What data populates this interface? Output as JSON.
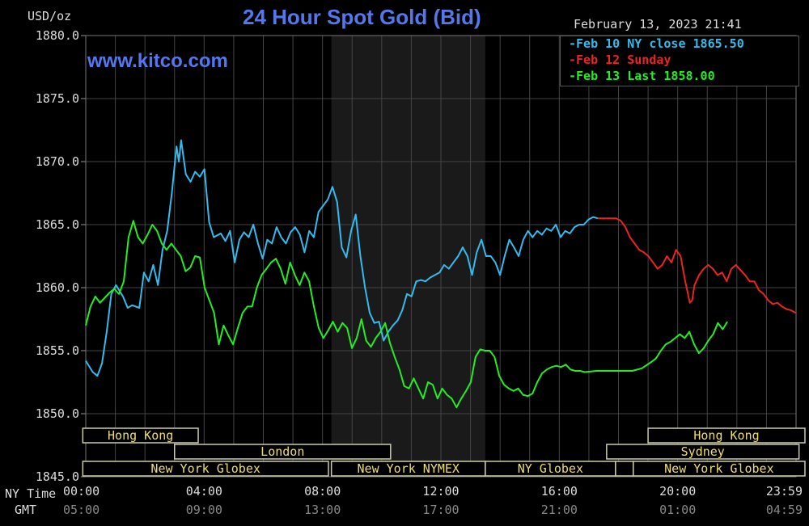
{
  "chart_data": {
    "type": "line",
    "title": "24 Hour Spot Gold (Bid)",
    "site": "www.kitco.com",
    "timestamp": "February 13, 2023 21:41",
    "ylabel": "USD/oz",
    "ylim": [
      1845,
      1880
    ],
    "y_ticks": [
      "1880.0",
      "1875.0",
      "1870.0",
      "1865.0",
      "1860.0",
      "1855.0",
      "1850.0",
      "1845.0"
    ],
    "grid": true,
    "legend_position": "top-right",
    "x_hours_ny": [
      0,
      24
    ],
    "x_labels_ny": [
      "00:00",
      "04:00",
      "08:00",
      "12:00",
      "16:00",
      "20:00",
      "23:59"
    ],
    "x_labels_gmt": [
      "05:00",
      "09:00",
      "13:00",
      "17:00",
      "21:00",
      "01:00",
      "04:59"
    ],
    "row_label_ny": "NY Time",
    "row_label_gmt": "GMT",
    "highlight_hours": [
      8.3,
      13.5
    ],
    "series": [
      {
        "name": "Feb 10 NY close 1865.50",
        "color": "#33bbee",
        "points": [
          [
            0,
            1854.2
          ],
          [
            0.3,
            1853.3
          ],
          [
            0.5,
            1853.0
          ],
          [
            0.7,
            1854.0
          ],
          [
            0.9,
            1856.5
          ],
          [
            1.1,
            1859.5
          ],
          [
            1.3,
            1860.2
          ],
          [
            1.6,
            1859.3
          ],
          [
            1.8,
            1858.4
          ],
          [
            2.0,
            1858.6
          ],
          [
            2.3,
            1858.4
          ],
          [
            2.5,
            1861.2
          ],
          [
            2.7,
            1860.5
          ],
          [
            2.9,
            1861.8
          ],
          [
            3.1,
            1860.2
          ],
          [
            3.3,
            1863.0
          ],
          [
            3.5,
            1864.5
          ],
          [
            3.7,
            1867.5
          ],
          [
            3.9,
            1871.2
          ],
          [
            4.0,
            1870.0
          ],
          [
            4.1,
            1871.7
          ],
          [
            4.3,
            1869.0
          ],
          [
            4.5,
            1868.4
          ],
          [
            4.7,
            1869.2
          ],
          [
            4.9,
            1868.8
          ],
          [
            5.1,
            1869.4
          ],
          [
            5.3,
            1865.2
          ],
          [
            5.5,
            1864.0
          ],
          [
            5.8,
            1864.3
          ],
          [
            6.0,
            1863.7
          ],
          [
            6.2,
            1864.5
          ],
          [
            6.4,
            1862.0
          ],
          [
            6.6,
            1863.8
          ],
          [
            6.8,
            1864.4
          ],
          [
            7.0,
            1864.0
          ],
          [
            7.2,
            1865.0
          ],
          [
            7.4,
            1863.5
          ],
          [
            7.6,
            1862.3
          ],
          [
            7.8,
            1863.8
          ],
          [
            8.0,
            1863.5
          ],
          [
            8.2,
            1864.8
          ],
          [
            8.4,
            1864.0
          ],
          [
            8.6,
            1863.5
          ],
          [
            8.8,
            1864.4
          ],
          [
            9.0,
            1864.8
          ],
          [
            9.2,
            1864.2
          ],
          [
            9.4,
            1862.8
          ],
          [
            9.6,
            1864.5
          ],
          [
            9.8,
            1864.0
          ],
          [
            10.0,
            1866.0
          ],
          [
            10.2,
            1866.5
          ],
          [
            10.4,
            1867.0
          ],
          [
            10.6,
            1868.0
          ],
          [
            10.8,
            1866.8
          ],
          [
            11.0,
            1863.2
          ],
          [
            11.2,
            1862.4
          ],
          [
            11.4,
            1864.5
          ],
          [
            11.6,
            1865.8
          ],
          [
            11.8,
            1862.5
          ],
          [
            12.0,
            1860.0
          ],
          [
            12.2,
            1858.0
          ],
          [
            12.4,
            1857.2
          ],
          [
            12.6,
            1857.3
          ],
          [
            12.8,
            1855.8
          ],
          [
            13.0,
            1856.5
          ],
          [
            13.2,
            1857.0
          ],
          [
            13.4,
            1857.4
          ],
          [
            13.6,
            1858.2
          ],
          [
            13.8,
            1859.5
          ],
          [
            14.0,
            1859.3
          ],
          [
            14.2,
            1860.5
          ],
          [
            14.4,
            1860.6
          ],
          [
            14.6,
            1860.5
          ],
          [
            14.8,
            1860.8
          ],
          [
            15.0,
            1861.0
          ],
          [
            15.2,
            1861.2
          ],
          [
            15.4,
            1861.8
          ],
          [
            15.6,
            1861.5
          ],
          [
            15.8,
            1862.0
          ],
          [
            16.0,
            1862.5
          ],
          [
            16.2,
            1863.2
          ],
          [
            16.4,
            1862.5
          ],
          [
            16.6,
            1861.0
          ],
          [
            16.8,
            1862.8
          ],
          [
            17.0,
            1863.8
          ],
          [
            17.2,
            1862.5
          ],
          [
            17.4,
            1862.5
          ],
          [
            17.6,
            1862.0
          ],
          [
            17.8,
            1861.0
          ],
          [
            18.0,
            1862.5
          ],
          [
            18.2,
            1863.8
          ],
          [
            18.4,
            1863.2
          ],
          [
            18.6,
            1862.5
          ],
          [
            18.8,
            1863.8
          ],
          [
            19.0,
            1864.5
          ],
          [
            19.2,
            1864.0
          ],
          [
            19.4,
            1864.5
          ],
          [
            19.6,
            1864.2
          ],
          [
            19.8,
            1864.7
          ],
          [
            20.0,
            1864.5
          ],
          [
            20.2,
            1865.0
          ],
          [
            20.4,
            1864.0
          ],
          [
            20.6,
            1864.5
          ],
          [
            20.8,
            1864.3
          ],
          [
            21.0,
            1864.8
          ],
          [
            21.2,
            1865.0
          ],
          [
            21.4,
            1865.0
          ],
          [
            21.6,
            1865.4
          ],
          [
            21.8,
            1865.6
          ],
          [
            22.0,
            1865.5
          ]
        ]
      },
      {
        "name": "Feb 12 Sunday",
        "color": "#ee2222",
        "points": [
          [
            0,
            1865.5
          ],
          [
            0.3,
            1865.5
          ],
          [
            0.6,
            1865.5
          ],
          [
            0.8,
            1865.5
          ],
          [
            1.0,
            1865.3
          ],
          [
            1.2,
            1864.8
          ],
          [
            1.4,
            1864.0
          ],
          [
            1.6,
            1863.5
          ],
          [
            1.8,
            1863.0
          ],
          [
            2.0,
            1862.8
          ],
          [
            2.2,
            1862.5
          ],
          [
            2.4,
            1862.0
          ],
          [
            2.6,
            1861.5
          ],
          [
            2.8,
            1861.8
          ],
          [
            3.0,
            1862.5
          ],
          [
            3.2,
            1862.0
          ],
          [
            3.4,
            1863.0
          ],
          [
            3.6,
            1862.5
          ],
          [
            3.8,
            1860.5
          ],
          [
            4.0,
            1858.8
          ],
          [
            4.1,
            1859.0
          ],
          [
            4.2,
            1860.2
          ],
          [
            4.4,
            1861.0
          ],
          [
            4.6,
            1861.5
          ],
          [
            4.8,
            1861.8
          ],
          [
            5.0,
            1861.5
          ],
          [
            5.2,
            1861.0
          ],
          [
            5.4,
            1861.2
          ],
          [
            5.6,
            1860.5
          ],
          [
            5.8,
            1861.5
          ],
          [
            6.0,
            1861.8
          ],
          [
            6.2,
            1861.4
          ],
          [
            6.4,
            1861.0
          ],
          [
            6.6,
            1860.5
          ],
          [
            6.8,
            1860.5
          ],
          [
            7.0,
            1859.8
          ],
          [
            7.2,
            1859.5
          ],
          [
            7.4,
            1859.0
          ],
          [
            7.6,
            1858.7
          ],
          [
            7.8,
            1858.8
          ],
          [
            8.0,
            1858.5
          ],
          [
            8.2,
            1858.3
          ],
          [
            8.4,
            1858.2
          ],
          [
            8.6,
            1858.0
          ]
        ]
      },
      {
        "name": "Feb 13 Last 1858.00",
        "color": "#22ee22",
        "points": [
          [
            0,
            1857.0
          ],
          [
            0.2,
            1858.5
          ],
          [
            0.4,
            1859.3
          ],
          [
            0.6,
            1858.8
          ],
          [
            0.8,
            1859.2
          ],
          [
            1.0,
            1859.6
          ],
          [
            1.2,
            1859.9
          ],
          [
            1.4,
            1859.5
          ],
          [
            1.6,
            1860.5
          ],
          [
            1.8,
            1864.0
          ],
          [
            2.0,
            1865.3
          ],
          [
            2.2,
            1864.0
          ],
          [
            2.4,
            1863.5
          ],
          [
            2.6,
            1864.2
          ],
          [
            2.8,
            1865.0
          ],
          [
            3.0,
            1864.5
          ],
          [
            3.2,
            1863.5
          ],
          [
            3.4,
            1863.0
          ],
          [
            3.6,
            1863.5
          ],
          [
            3.8,
            1863.0
          ],
          [
            4.0,
            1862.5
          ],
          [
            4.2,
            1861.3
          ],
          [
            4.4,
            1861.6
          ],
          [
            4.6,
            1862.5
          ],
          [
            4.8,
            1862.4
          ],
          [
            5.0,
            1860.0
          ],
          [
            5.2,
            1859.0
          ],
          [
            5.4,
            1858.0
          ],
          [
            5.6,
            1855.5
          ],
          [
            5.8,
            1857.0
          ],
          [
            6.0,
            1856.2
          ],
          [
            6.2,
            1855.5
          ],
          [
            6.4,
            1856.8
          ],
          [
            6.6,
            1858.0
          ],
          [
            6.8,
            1858.5
          ],
          [
            7.0,
            1858.5
          ],
          [
            7.2,
            1860.0
          ],
          [
            7.4,
            1861.0
          ],
          [
            7.6,
            1861.5
          ],
          [
            7.8,
            1862.0
          ],
          [
            8.0,
            1862.3
          ],
          [
            8.2,
            1861.5
          ],
          [
            8.4,
            1860.3
          ],
          [
            8.6,
            1862.0
          ],
          [
            8.8,
            1861.0
          ],
          [
            9.0,
            1860.2
          ],
          [
            9.2,
            1861.2
          ],
          [
            9.4,
            1860.5
          ],
          [
            9.6,
            1858.5
          ],
          [
            9.8,
            1856.8
          ],
          [
            10.0,
            1856.0
          ],
          [
            10.2,
            1856.6
          ],
          [
            10.4,
            1857.3
          ],
          [
            10.6,
            1856.5
          ],
          [
            10.8,
            1857.2
          ],
          [
            11.0,
            1856.8
          ],
          [
            11.2,
            1855.2
          ],
          [
            11.4,
            1856.0
          ],
          [
            11.6,
            1857.5
          ],
          [
            11.8,
            1855.8
          ],
          [
            12.0,
            1855.3
          ],
          [
            12.2,
            1856.0
          ],
          [
            12.4,
            1856.5
          ],
          [
            12.6,
            1857.2
          ],
          [
            12.8,
            1855.6
          ],
          [
            13.0,
            1854.5
          ],
          [
            13.2,
            1853.5
          ],
          [
            13.4,
            1852.2
          ],
          [
            13.6,
            1852.0
          ],
          [
            13.8,
            1852.8
          ],
          [
            14.0,
            1852.0
          ],
          [
            14.2,
            1851.2
          ],
          [
            14.4,
            1852.5
          ],
          [
            14.6,
            1852.3
          ],
          [
            14.8,
            1851.2
          ],
          [
            15.0,
            1852.0
          ],
          [
            15.2,
            1851.5
          ],
          [
            15.4,
            1851.2
          ],
          [
            15.6,
            1850.5
          ],
          [
            15.8,
            1851.2
          ],
          [
            16.0,
            1851.8
          ],
          [
            16.2,
            1852.5
          ],
          [
            16.4,
            1854.5
          ],
          [
            16.6,
            1855.1
          ],
          [
            16.8,
            1855.0
          ],
          [
            17.0,
            1855.0
          ],
          [
            17.2,
            1854.5
          ],
          [
            17.4,
            1853.0
          ],
          [
            17.6,
            1852.3
          ],
          [
            17.8,
            1852.0
          ],
          [
            18.0,
            1851.8
          ],
          [
            18.2,
            1852.0
          ],
          [
            18.4,
            1851.5
          ],
          [
            18.6,
            1851.4
          ],
          [
            18.8,
            1851.6
          ],
          [
            19.0,
            1852.5
          ],
          [
            19.2,
            1853.2
          ],
          [
            19.4,
            1853.5
          ],
          [
            19.6,
            1853.7
          ],
          [
            19.8,
            1853.8
          ],
          [
            20.0,
            1853.7
          ],
          [
            20.2,
            1853.9
          ],
          [
            20.4,
            1853.5
          ],
          [
            20.6,
            1853.4
          ],
          [
            20.8,
            1853.4
          ],
          [
            21.0,
            1853.3
          ],
          [
            21.5,
            1853.4
          ],
          [
            22.0,
            1853.4
          ],
          [
            22.5,
            1853.4
          ],
          [
            23.0,
            1853.4
          ],
          [
            23.4,
            1853.6
          ],
          [
            23.8,
            1854.1
          ],
          [
            24.0,
            1854.4
          ],
          [
            24.2,
            1855.0
          ],
          [
            24.4,
            1855.5
          ],
          [
            24.6,
            1855.7
          ],
          [
            24.8,
            1856.0
          ],
          [
            25.0,
            1856.3
          ],
          [
            25.2,
            1856.0
          ],
          [
            25.4,
            1856.5
          ],
          [
            25.6,
            1855.5
          ],
          [
            25.8,
            1854.8
          ],
          [
            26.0,
            1855.2
          ],
          [
            26.2,
            1855.8
          ],
          [
            26.4,
            1856.3
          ],
          [
            26.6,
            1857.2
          ],
          [
            26.8,
            1856.7
          ],
          [
            27.0,
            1857.3
          ]
        ]
      }
    ],
    "sessions": [
      {
        "name": "Hong Kong",
        "row": 0,
        "start": -0.1,
        "end": 3.8
      },
      {
        "name": "Hong Kong",
        "row": 0,
        "start": 19.0,
        "end": 24.3
      },
      {
        "name": "London",
        "row": 1,
        "start": 3.0,
        "end": 10.3
      },
      {
        "name": "Sydney",
        "row": 1,
        "start": 17.6,
        "end": 24.1
      },
      {
        "name": "New York Globex",
        "row": 2,
        "start": -0.1,
        "end": 8.2
      },
      {
        "name": "New York NYMEX",
        "row": 2,
        "start": 8.3,
        "end": 13.5
      },
      {
        "name": "NY Globex",
        "row": 2,
        "start": 13.5,
        "end": 17.9
      },
      {
        "name": "",
        "row": 2,
        "start": 17.9,
        "end": 18.5
      },
      {
        "name": "New York Globex",
        "row": 2,
        "start": 18.5,
        "end": 24.3
      }
    ]
  }
}
